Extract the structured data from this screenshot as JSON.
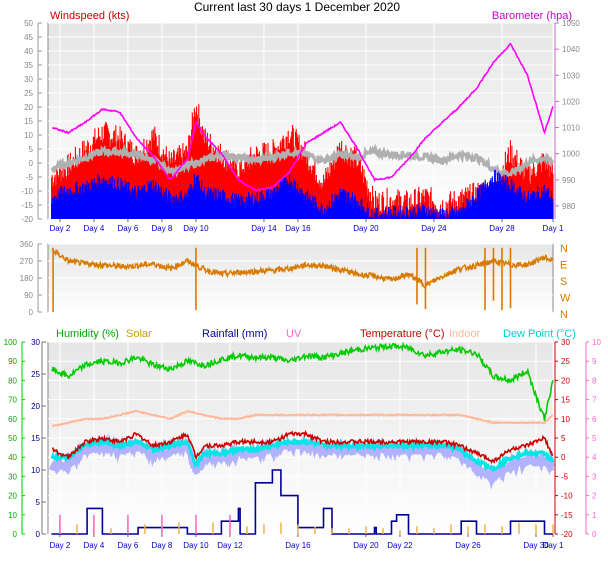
{
  "title": "Current last 30 days 1 December 2020",
  "colors": {
    "windspeed": "#ff0000",
    "avg_wind": "#0000ff",
    "barometer": "#ff00ff",
    "grey": "#b0b0b0",
    "direction": "#d97a00",
    "humidity": "#00cc00",
    "solar": "#c8a000",
    "rainfall": "#000099",
    "uv": "#ff66cc",
    "temperature": "#cc0000",
    "indoor": "#ffb899",
    "dewpoint": "#00e5e5",
    "dewband": "#a0a0ff"
  },
  "chart_data": [
    {
      "type": "line",
      "panel": "wind-barometer",
      "left_axis": {
        "label": "Windspeed (kts)",
        "range": [
          -20,
          50
        ],
        "ticks": [
          -20,
          -15,
          -10,
          -5,
          0,
          5,
          10,
          15,
          20,
          25,
          30,
          35,
          40,
          45,
          50
        ]
      },
      "right_axis": {
        "label": "Barometer (hpa)",
        "range": [
          975,
          1050
        ],
        "ticks": [
          980,
          990,
          1000,
          1010,
          1020,
          1030,
          1040,
          1050
        ]
      },
      "x_ticks": [
        "Day 2",
        "Day 4",
        "Day 6",
        "Day 8",
        "Day 10",
        "Day 14",
        "Day 16",
        "Day 20",
        "Day 24",
        "Day 28",
        "Day 1"
      ],
      "x_tick_days": [
        2,
        4,
        6,
        8,
        10,
        14,
        16,
        20,
        24,
        28,
        31
      ],
      "x_range": [
        1.3,
        31
      ],
      "series": [
        {
          "name": "Windspeed (kts)",
          "role": "gust",
          "x": [
            1.5,
            2.5,
            3.5,
            4.5,
            5.5,
            6.5,
            7.5,
            8.5,
            9.5,
            10.0,
            10.5,
            11.5,
            12.5,
            13.5,
            14.5,
            15.5,
            16.5,
            17.5,
            18.5,
            19.5,
            20.5,
            21.5,
            22.5,
            23.5,
            24.5,
            25.5,
            26.5,
            27.5,
            28.5,
            29.5,
            30.5,
            31
          ],
          "y": [
            -6,
            -2,
            4,
            10,
            8,
            2,
            9,
            -1,
            3,
            20,
            8,
            2,
            -3,
            2,
            3,
            10,
            2,
            -8,
            5,
            0,
            -15,
            -14,
            -15,
            -13,
            -16,
            -14,
            -12,
            -10,
            3,
            -5,
            0,
            -4
          ]
        },
        {
          "name": "Wind average",
          "role": "avg",
          "x": [
            1.5,
            2.5,
            3.5,
            4.5,
            5.5,
            6.5,
            7.5,
            8.5,
            9.5,
            10.0,
            10.5,
            11.5,
            12.5,
            13.5,
            14.5,
            15.5,
            16.5,
            17.5,
            18.5,
            19.5,
            20.5,
            21.5,
            22.5,
            23.5,
            24.5,
            25.5,
            26.5,
            27.5,
            28.5,
            29.5,
            30.5,
            31
          ],
          "y": [
            -13,
            -10,
            -9,
            -6,
            -8,
            -11,
            -8,
            -13,
            -12,
            -5,
            -11,
            -12,
            -14,
            -13,
            -11,
            -6,
            -12,
            -17,
            -11,
            -14,
            -19,
            -18,
            -18,
            -17,
            -19,
            -18,
            -12,
            -5,
            -8,
            -13,
            -10,
            -13
          ]
        },
        {
          "name": "Grey",
          "role": "grey",
          "x": [
            1.5,
            2.5,
            3.5,
            4.5,
            5.5,
            6.5,
            7.5,
            8.5,
            9.5,
            10.5,
            11.5,
            12.5,
            13.5,
            14.5,
            15.5,
            16.5,
            17.5,
            18.5,
            19.5,
            20.5,
            21.5,
            22.5,
            23.5,
            24.5,
            25.5,
            26.5,
            27.5,
            28.5,
            29.5,
            30.5,
            31
          ],
          "y": [
            -2,
            0,
            2,
            4,
            4,
            3,
            1,
            -3,
            -1,
            1,
            3,
            2,
            1,
            2,
            4,
            3,
            1,
            3,
            2,
            4,
            3,
            3,
            2,
            1,
            3,
            2,
            -2,
            -4,
            0,
            2,
            0
          ]
        },
        {
          "name": "Barometer (hpa)",
          "role": "baro",
          "x": [
            1.5,
            2.5,
            3.5,
            4.5,
            5.5,
            6.5,
            7.5,
            8.5,
            9.5,
            10.0,
            10.5,
            11.5,
            12.5,
            13.5,
            14.5,
            15.5,
            16.5,
            17.5,
            18.5,
            19.5,
            20.5,
            21.5,
            22.5,
            23.5,
            24.5,
            25.5,
            26.5,
            27.5,
            28.5,
            29.5,
            30.5,
            31
          ],
          "y": [
            1010,
            1008,
            1012,
            1017,
            1016,
            1006,
            999,
            990,
            998,
            1012,
            1007,
            1000,
            990,
            986,
            987,
            993,
            1004,
            1008,
            1012,
            1002,
            990,
            991,
            998,
            1006,
            1012,
            1018,
            1025,
            1035,
            1042,
            1030,
            1008,
            1018
          ]
        }
      ]
    },
    {
      "type": "scatter",
      "panel": "wind-direction",
      "left_axis": {
        "range": [
          0,
          360
        ],
        "ticks": [
          0,
          90,
          180,
          270,
          360
        ]
      },
      "right_axis": {
        "ticks": [
          "N",
          "E",
          "S",
          "W",
          "N"
        ]
      },
      "x_range": [
        1.3,
        31
      ],
      "series": [
        {
          "name": "Wind direction",
          "x": [
            1.5,
            2.5,
            3.5,
            4.5,
            5.5,
            6.5,
            7.5,
            8.5,
            9.5,
            10.5,
            11.5,
            12.5,
            13.5,
            14.5,
            15.5,
            16.5,
            17.5,
            18.5,
            19.5,
            20.5,
            21.5,
            22.5,
            23.5,
            24.5,
            25.5,
            26.5,
            27.5,
            28.5,
            29.5,
            30.5,
            31
          ],
          "y": [
            330,
            270,
            255,
            250,
            240,
            245,
            255,
            230,
            270,
            225,
            200,
            210,
            215,
            220,
            230,
            250,
            245,
            225,
            200,
            190,
            170,
            200,
            140,
            190,
            230,
            245,
            270,
            250,
            250,
            290,
            270
          ]
        }
      ]
    },
    {
      "type": "line",
      "panel": "temperature-humidity-rain",
      "legend": [
        "Humidity (%)",
        "Solar",
        "Rainfall (mm)",
        "UV",
        "Temperature (°C)",
        "Indoor",
        "Dew Point (°C)"
      ],
      "axes": {
        "humidity": {
          "range": [
            0,
            100
          ],
          "ticks": [
            0,
            10,
            20,
            30,
            40,
            50,
            60,
            70,
            80,
            90,
            100
          ]
        },
        "rainfall": {
          "range": [
            0,
            30
          ],
          "ticks": [
            0,
            5,
            10,
            15,
            20,
            25,
            30
          ]
        },
        "temperature": {
          "range": [
            -20,
            30
          ],
          "ticks": [
            -20,
            -15,
            -10,
            -5,
            0,
            5,
            10,
            15,
            20,
            25,
            30
          ]
        },
        "uv": {
          "range": [
            0,
            10
          ],
          "ticks": [
            0,
            1,
            2,
            3,
            4,
            5,
            6,
            7,
            8,
            9,
            10
          ]
        }
      },
      "x_ticks": [
        "Day 2",
        "Day 4",
        "Day 6",
        "Day 8",
        "Day 10",
        "Day 12",
        "Day 16",
        "Day 20",
        "Day 22",
        "Day 26",
        "Day 30",
        "Day 1"
      ],
      "x_tick_days": [
        2,
        4,
        6,
        8,
        10,
        12,
        16,
        20,
        22,
        26,
        30,
        31
      ],
      "x_range": [
        1.3,
        31
      ],
      "series": [
        {
          "name": "Humidity (%)",
          "axis": "humidity",
          "x": [
            1.5,
            2.5,
            3.5,
            4.5,
            5.5,
            6.5,
            7.5,
            8.5,
            9.5,
            10.5,
            11.5,
            12.5,
            13.5,
            14.5,
            15.5,
            16.5,
            17.5,
            18.5,
            19.5,
            20.5,
            21.5,
            22.5,
            23.5,
            24.5,
            25.5,
            26.5,
            27.5,
            28.5,
            29.5,
            30.0,
            30.5,
            31
          ],
          "y": [
            86,
            82,
            88,
            90,
            89,
            92,
            88,
            86,
            90,
            88,
            91,
            93,
            92,
            92,
            90,
            93,
            92,
            94,
            96,
            97,
            98,
            97,
            93,
            95,
            96,
            94,
            82,
            80,
            85,
            72,
            60,
            80
          ]
        },
        {
          "name": "Indoor",
          "axis": "temperature",
          "x": [
            1.5,
            2.5,
            3.5,
            4.5,
            5.5,
            6.5,
            7.5,
            8.5,
            9.5,
            10.5,
            11.5,
            12.5,
            13.5,
            14.5,
            15.5,
            16.5,
            17.5,
            18.5,
            19.5,
            20.5,
            21.5,
            22.5,
            23.5,
            24.5,
            25.5,
            26.5,
            27.5,
            28.5,
            29.5,
            30.5,
            31
          ],
          "y": [
            8,
            9,
            10,
            10,
            11,
            12,
            11,
            10,
            12,
            11,
            10,
            10,
            11,
            11,
            11,
            11,
            11,
            11,
            11,
            11,
            11,
            11,
            11,
            11,
            11,
            10,
            9,
            9,
            9,
            9,
            11
          ]
        },
        {
          "name": "Dew band",
          "axis": "temperature",
          "x": [
            1.5,
            2.5,
            3.5,
            4.5,
            5.5,
            6.5,
            7.5,
            8.5,
            9.5,
            10.0,
            10.5,
            11.5,
            12.5,
            13.5,
            14.5,
            15.5,
            16.5,
            17.5,
            18.5,
            19.5,
            20.5,
            21.5,
            22.5,
            23.5,
            24.5,
            25.5,
            26.5,
            27.5,
            28.5,
            29.5,
            30.5,
            31
          ],
          "y": [
            -3,
            -2,
            2,
            3,
            2,
            3,
            1,
            2,
            3,
            -4,
            0,
            0,
            1,
            1,
            2,
            3,
            3,
            2,
            2,
            2,
            2,
            2,
            2,
            2,
            2,
            1,
            -3,
            -5,
            -2,
            -1,
            -1,
            -2
          ]
        },
        {
          "name": "Dew Point (°C)",
          "axis": "temperature",
          "x": [
            1.5,
            2.5,
            3.5,
            4.5,
            5.5,
            6.5,
            7.5,
            8.5,
            9.5,
            10.0,
            10.5,
            11.5,
            12.5,
            13.5,
            14.5,
            15.5,
            16.5,
            17.5,
            18.5,
            19.5,
            20.5,
            21.5,
            22.5,
            23.5,
            24.5,
            25.5,
            26.5,
            27.5,
            28.5,
            29.5,
            30.5,
            31
          ],
          "y": [
            0,
            0,
            3,
            4,
            3,
            4,
            2,
            3,
            4,
            -2,
            1,
            1,
            2,
            2,
            3,
            4,
            4,
            3,
            3,
            3,
            3,
            3,
            3,
            3,
            3,
            2,
            -1,
            -3,
            0,
            1,
            1,
            -1
          ]
        },
        {
          "name": "Temperature (°C)",
          "axis": "temperature",
          "x": [
            1.5,
            2.5,
            3.5,
            4.5,
            5.5,
            6.5,
            7.5,
            8.5,
            9.5,
            10.0,
            10.5,
            11.5,
            12.5,
            13.5,
            14.5,
            15.5,
            16.5,
            17.5,
            18.5,
            19.5,
            20.5,
            21.5,
            22.5,
            23.5,
            24.5,
            25.5,
            26.5,
            27.5,
            28.5,
            29.5,
            30.5,
            31
          ],
          "y": [
            2,
            0,
            4,
            5,
            4,
            6,
            3,
            4,
            6,
            0,
            3,
            3,
            4,
            4,
            4,
            6,
            6,
            4,
            4,
            4,
            4,
            4,
            4,
            4,
            4,
            3,
            1,
            -1,
            2,
            3,
            5,
            0
          ]
        },
        {
          "name": "Rainfall (mm)",
          "axis": "rainfall",
          "x": [
            1.5,
            3.5,
            3.6,
            4.5,
            6.5,
            6.6,
            9.5,
            10.5,
            11.5,
            12.5,
            12.6,
            13.5,
            14.5,
            15.0,
            16.0,
            17.5,
            18.0,
            19.5,
            20.5,
            20.6,
            21.5,
            21.8,
            22.5,
            25.5,
            25.6,
            26.5,
            28.0,
            28.5,
            30.5,
            31
          ],
          "y": [
            0,
            0,
            4,
            0,
            0,
            1,
            0,
            0,
            2,
            4,
            0,
            8,
            10,
            6,
            1,
            4,
            0,
            0,
            1,
            0,
            2,
            3,
            0,
            0,
            2,
            0,
            0,
            2,
            0,
            0
          ]
        },
        {
          "name": "Solar",
          "axis": "humidity",
          "x": [
            2.0,
            3.0,
            4.0,
            5.0,
            6.0,
            7.0,
            8.0,
            9.0,
            10.0,
            11.0,
            12.0,
            13.0,
            14.0,
            15.0,
            16.0,
            17.0,
            18.0,
            19.0,
            20.0,
            21.0,
            22.0,
            23.0,
            24.0,
            25.0,
            26.0,
            27.0,
            28.0,
            29.0,
            30.0,
            31.0
          ],
          "y": [
            6,
            5,
            6,
            3,
            6,
            5,
            4,
            6,
            5,
            6,
            6,
            4,
            5,
            6,
            5,
            4,
            3,
            3,
            4,
            3,
            2,
            4,
            3,
            5,
            4,
            5,
            4,
            6,
            5,
            5
          ]
        },
        {
          "name": "UV",
          "axis": "uv",
          "x": [
            2.0,
            4.0,
            6.0,
            8.0,
            10.0,
            12.0
          ],
          "y": [
            1,
            1,
            1,
            1,
            1,
            1
          ]
        }
      ]
    }
  ]
}
